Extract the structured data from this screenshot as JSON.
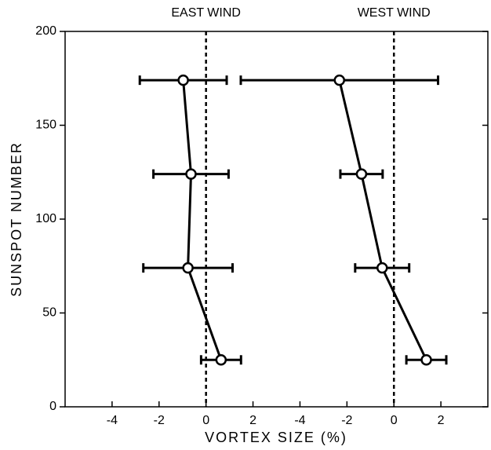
{
  "chart_data": [
    {
      "type": "errorbar-line",
      "title": "EAST WIND",
      "xlabel": "VORTEX SIZE (%)",
      "ylabel": "SUNSPOT NUMBER",
      "xlim": [
        -6,
        2
      ],
      "xticks": [
        -4,
        -2,
        0,
        2
      ],
      "ylim": [
        0,
        200
      ],
      "yticks": [
        0,
        50,
        100,
        150,
        200
      ],
      "refline": 0,
      "color": "#000000",
      "y": [
        174,
        124,
        74,
        25
      ],
      "x": [
        -0.97,
        -0.64,
        -0.77,
        0.64
      ],
      "xerr": [
        1.85,
        1.6,
        1.9,
        0.85
      ]
    },
    {
      "type": "errorbar-line",
      "title": "WEST WIND",
      "xlim": [
        -6,
        4
      ],
      "xticks": [
        -4,
        -2,
        0,
        2
      ],
      "ylim": [
        0,
        200
      ],
      "yticks": [
        0,
        50,
        100,
        150,
        200
      ],
      "refline": 0,
      "color": "#000000",
      "y": [
        174,
        124,
        74,
        25
      ],
      "x": [
        -2.32,
        -1.38,
        -0.5,
        1.38
      ],
      "xerr": [
        4.2,
        0.9,
        1.15,
        0.85
      ]
    }
  ]
}
